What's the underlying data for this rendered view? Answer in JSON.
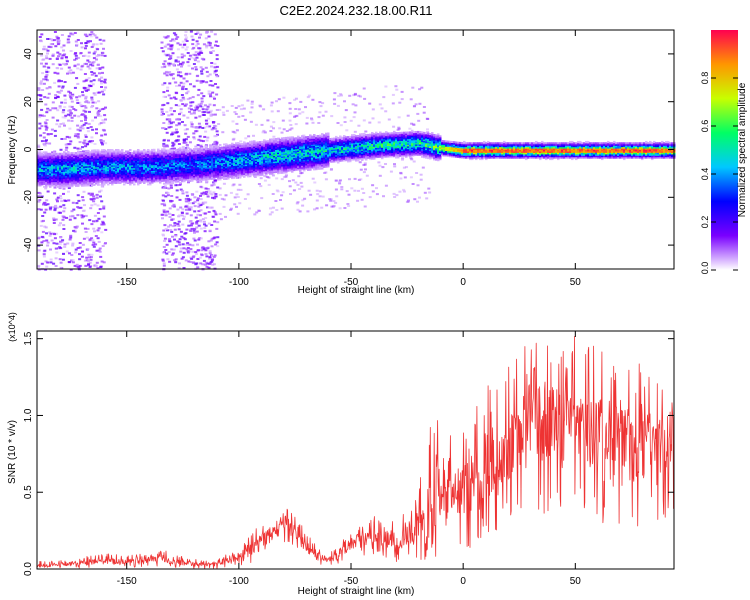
{
  "title": "C2E2.2024.232.18.00.R11",
  "chart_data": [
    {
      "type": "heatmap",
      "xlabel": "Height of straight line (km)",
      "ylabel": "Frequency (Hz)",
      "xlim": [
        -190,
        94
      ],
      "ylim": [
        -50,
        50
      ],
      "xticks": [
        -150,
        -100,
        -50,
        0,
        50
      ],
      "yticks": [
        -40,
        -20,
        0,
        20,
        40
      ],
      "colorbar": {
        "label": "Normalized spectral amplitude",
        "range": [
          0.0,
          1.0
        ],
        "ticks": [
          0.0,
          0.2,
          0.4,
          0.6,
          0.8
        ],
        "colormap": "rainbow",
        "colors": [
          "#ffffff",
          "#7a00ff",
          "#0000ff",
          "#00c8ff",
          "#00ff64",
          "#c8ff00",
          "#ff9600",
          "#ff0050"
        ]
      },
      "ridge": {
        "x": [
          -190,
          -180,
          -160,
          -140,
          -120,
          -100,
          -80,
          -60,
          -40,
          -20,
          -10,
          0,
          25,
          50,
          94
        ],
        "frequency": [
          -8,
          -8,
          -7,
          -7,
          -6,
          -4,
          -2,
          0,
          2,
          3,
          1,
          0,
          0,
          0,
          0
        ],
        "peak_amplitude": [
          0.45,
          0.5,
          0.45,
          0.45,
          0.4,
          0.5,
          0.55,
          0.55,
          0.6,
          0.6,
          0.7,
          0.95,
          0.95,
          0.95,
          0.95
        ]
      },
      "scatter_bands_x": [
        [
          -190,
          -160
        ],
        [
          -135,
          -110
        ]
      ]
    },
    {
      "type": "line",
      "xlabel": "Height of straight line (km)",
      "ylabel": "SNR (10 * v/v)",
      "y_multiplier": "(x10^4)",
      "xlim": [
        -190,
        94
      ],
      "ylim": [
        0.0,
        1.55
      ],
      "xticks": [
        -150,
        -100,
        -50,
        0,
        50
      ],
      "yticks": [
        "0.0",
        "0.5",
        "1.0",
        "1.5"
      ],
      "color": "#ee3333",
      "series": [
        {
          "x": [
            -190,
            -180,
            -170,
            -160,
            -150,
            -140,
            -135,
            -130,
            -120,
            -110,
            -100,
            -95,
            -90,
            -85,
            -80,
            -75,
            -70,
            -65,
            -60,
            -55,
            -50,
            -45,
            -40,
            -35,
            -30,
            -25,
            -20,
            -15,
            -10,
            -5,
            0,
            5,
            10,
            15,
            20,
            25,
            30,
            35,
            40,
            45,
            50,
            55,
            60,
            65,
            70,
            75,
            80,
            85,
            90,
            94
          ],
          "values": [
            0.02,
            0.03,
            0.04,
            0.05,
            0.05,
            0.06,
            0.08,
            0.05,
            0.03,
            0.03,
            0.08,
            0.12,
            0.18,
            0.24,
            0.3,
            0.25,
            0.14,
            0.08,
            0.06,
            0.1,
            0.16,
            0.2,
            0.22,
            0.2,
            0.18,
            0.22,
            0.28,
            0.36,
            0.42,
            0.48,
            0.5,
            0.55,
            0.62,
            0.68,
            0.75,
            0.82,
            0.95,
            0.92,
            0.98,
            0.9,
            0.95,
            0.85,
            0.92,
            0.8,
            0.88,
            0.75,
            0.8,
            0.72,
            0.82,
            0.88
          ],
          "max": [
            0.05,
            0.06,
            0.08,
            0.1,
            0.1,
            0.1,
            0.14,
            0.1,
            0.07,
            0.06,
            0.15,
            0.22,
            0.3,
            0.38,
            0.42,
            0.38,
            0.24,
            0.14,
            0.12,
            0.2,
            0.26,
            0.3,
            0.35,
            0.32,
            0.32,
            0.4,
            0.58,
            1.0,
            0.98,
            0.9,
            1.0,
            1.1,
            1.2,
            1.3,
            1.35,
            1.45,
            1.55,
            1.55,
            1.52,
            1.5,
            1.55,
            1.45,
            1.5,
            1.35,
            1.45,
            1.3,
            1.4,
            1.2,
            1.3,
            1.25
          ],
          "min": [
            0.0,
            0.0,
            0.0,
            0.01,
            0.01,
            0.01,
            0.02,
            0.01,
            0.0,
            0.0,
            0.02,
            0.04,
            0.06,
            0.1,
            0.14,
            0.1,
            0.05,
            0.02,
            0.02,
            0.03,
            0.05,
            0.06,
            0.08,
            0.06,
            0.04,
            0.04,
            0.04,
            0.06,
            0.08,
            0.1,
            0.12,
            0.15,
            0.2,
            0.25,
            0.3,
            0.35,
            0.4,
            0.2,
            0.38,
            0.3,
            0.4,
            0.25,
            0.35,
            0.2,
            0.3,
            0.22,
            0.3,
            0.15,
            0.3,
            0.35
          ]
        }
      ]
    }
  ]
}
